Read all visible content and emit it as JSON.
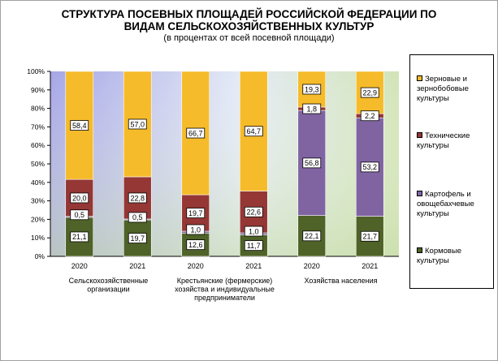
{
  "title_line1": "СТРУКТУРА ПОСЕВНЫХ ПЛОЩАДЕЙ РОССИЙСКОЙ ФЕДЕРАЦИИ ПО",
  "title_line2": "ВИДАМ СЕЛЬСКОХОЗЯЙСТВЕННЫХ КУЛЬТУР",
  "subtitle": "(в процентах от всей посевной площади)",
  "chart_data": {
    "type": "bar",
    "stacked": true,
    "ylim": [
      0,
      100
    ],
    "y_ticks": [
      "0%",
      "10%",
      "20%",
      "30%",
      "40%",
      "50%",
      "60%",
      "70%",
      "80%",
      "90%",
      "100%"
    ],
    "categories": [
      "2020",
      "2021",
      "2020",
      "2021",
      "2020",
      "2021"
    ],
    "groups": [
      {
        "label_lines": [
          "Сельскохозяйственные",
          "организации"
        ]
      },
      {
        "label_lines": [
          "Крестьянские (фермерские)",
          "хозяйства и индивидуальные",
          "предприниматели"
        ]
      },
      {
        "label_lines": [
          "Хозяйства населения"
        ]
      }
    ],
    "legend_position": "right",
    "series": [
      {
        "name_lines": [
          "Кормовые",
          "культуры"
        ],
        "color": "#4f6228",
        "values": [
          21.1,
          19.7,
          12.6,
          11.7,
          22.1,
          21.7
        ],
        "labels": [
          "21,1",
          "19,7",
          "12,6",
          "11,7",
          "22,1",
          "21,7"
        ]
      },
      {
        "name_lines": [
          "Картофель и",
          "овощебахчевые",
          "культуры"
        ],
        "color": "#8064a2",
        "values": [
          0.5,
          0.5,
          1.0,
          1.0,
          56.8,
          53.2
        ],
        "labels": [
          "0,5",
          "0,5",
          "1,0",
          "1,0",
          "56,8",
          "53,2"
        ]
      },
      {
        "name_lines": [
          "Технические",
          "культуры"
        ],
        "color": "#953735",
        "values": [
          20.0,
          22.8,
          19.7,
          22.6,
          1.8,
          2.2
        ],
        "labels": [
          "20,0",
          "22,8",
          "19,7",
          "22,6",
          "1,8",
          "2,2"
        ]
      },
      {
        "name_lines": [
          "Зерновые и",
          "зернобобовые",
          "культуры"
        ],
        "color": "#f6bb2a",
        "values": [
          58.4,
          57.0,
          66.7,
          64.7,
          19.3,
          22.9
        ],
        "labels": [
          "58,4",
          "57,0",
          "66,7",
          "64,7",
          "19,3",
          "22,9"
        ]
      }
    ]
  }
}
